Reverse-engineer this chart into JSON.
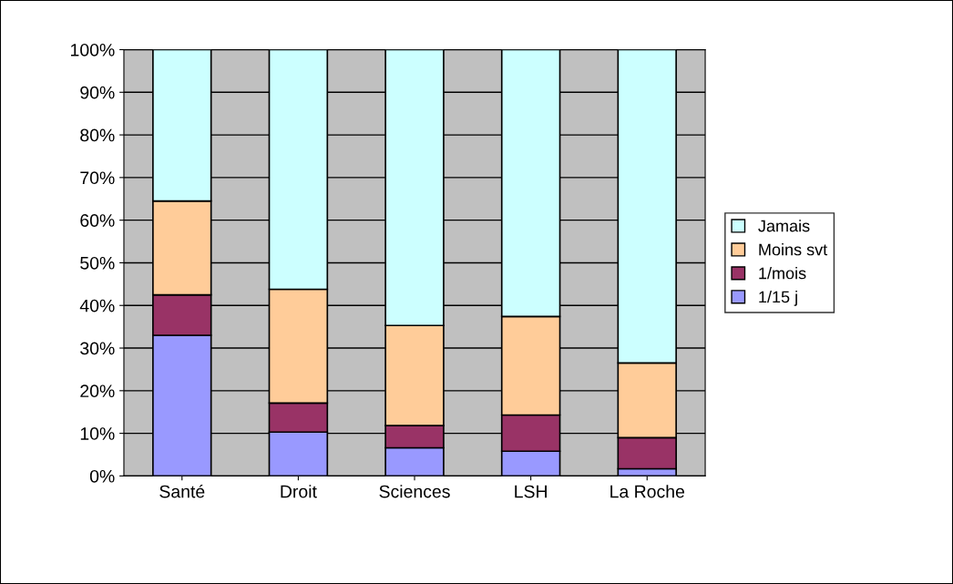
{
  "chart_data": {
    "type": "bar",
    "stacked": true,
    "categories": [
      "Santé",
      "Droit",
      "Sciences",
      "LSH",
      "La Roche"
    ],
    "series": [
      {
        "name": "1/15 j",
        "color": "#9999ff",
        "values": [
          33,
          10.3,
          6.6,
          5.8,
          1.7
        ]
      },
      {
        "name": "1/mois",
        "color": "#993366",
        "values": [
          9.5,
          6.8,
          5.2,
          8.5,
          7.3
        ]
      },
      {
        "name": "Moins svt",
        "color": "#ffcc99",
        "values": [
          22,
          26.7,
          23.5,
          23.1,
          17.5
        ]
      },
      {
        "name": "Jamais",
        "color": "#ccffff",
        "values": [
          35.5,
          56.2,
          64.7,
          62.6,
          73.5
        ]
      }
    ],
    "ylim": [
      0,
      100
    ],
    "yticks": [
      {
        "value": 0,
        "label": "0%"
      },
      {
        "value": 10,
        "label": "10%"
      },
      {
        "value": 20,
        "label": "20%"
      },
      {
        "value": 30,
        "label": "30%"
      },
      {
        "value": 40,
        "label": "40%"
      },
      {
        "value": 50,
        "label": "50%"
      },
      {
        "value": 60,
        "label": "60%"
      },
      {
        "value": 70,
        "label": "70%"
      },
      {
        "value": 80,
        "label": "80%"
      },
      {
        "value": 90,
        "label": "90%"
      },
      {
        "value": 100,
        "label": "100%"
      }
    ],
    "grid": "y",
    "legend": "right"
  }
}
